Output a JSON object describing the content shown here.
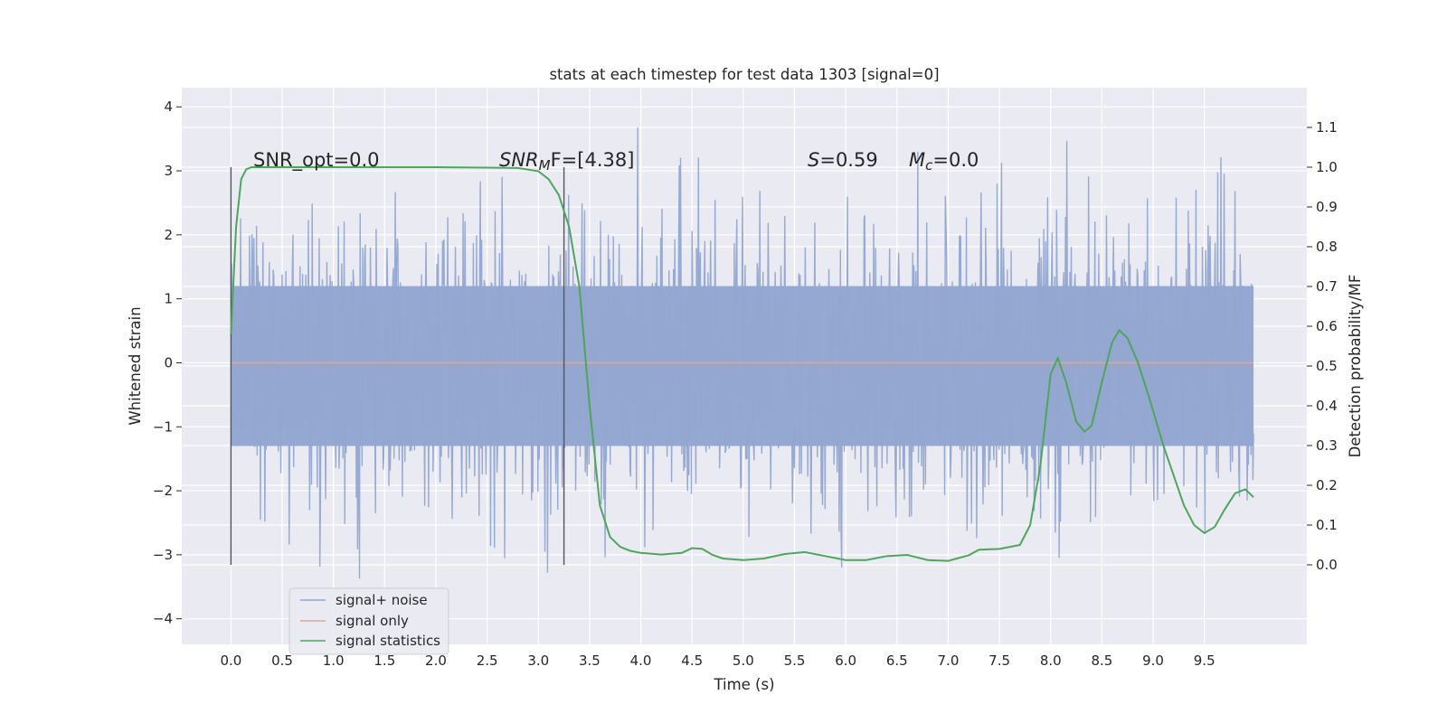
{
  "chart_data": {
    "type": "line",
    "title": "stats at each timestep for test data 1303 [signal=0]",
    "xlabel": "Time (s)",
    "ylabel": "Whitened strain",
    "ylabel_right": "Detection probability/MF",
    "xlim": [
      -0.48,
      10.5
    ],
    "ylim": [
      -4.4,
      4.3
    ],
    "ylim_right": [
      -0.2,
      1.2
    ],
    "x_ticks": [
      "0.0",
      "0.5",
      "1.0",
      "1.5",
      "2.0",
      "2.5",
      "3.0",
      "3.5",
      "4.0",
      "4.5",
      "5.0",
      "5.5",
      "6.0",
      "6.5",
      "7.0",
      "7.5",
      "8.0",
      "8.5",
      "9.0",
      "9.5"
    ],
    "y_ticks": [
      "4",
      "3",
      "2",
      "1",
      "0",
      "−1",
      "−2",
      "−3",
      "−4"
    ],
    "y_right_ticks": [
      "1.1",
      "1.0",
      "0.9",
      "0.8",
      "0.7",
      "0.6",
      "0.5",
      "0.4",
      "0.3",
      "0.2",
      "0.1",
      "0.0"
    ],
    "grid": true,
    "legend_position": "lower-left",
    "annotations": {
      "snr_opt": "SNR_opt=0.0",
      "snr_mf_italic": "SNR",
      "snr_mf_sub": "M",
      "snr_mf_rest": "F=[4.38]",
      "s_italic": "S",
      "s_rest": "=0.59",
      "mc_italic": "M",
      "mc_sub": "c",
      "mc_rest": "=0.0"
    },
    "vertical_markers": [
      0.0,
      3.25
    ],
    "series": [
      {
        "name": "signal+ noise",
        "color": "#92a6d1",
        "axis": "left",
        "x_range": [
          0.0,
          9.98
        ],
        "envelope": {
          "core": [
            -1.3,
            1.2
          ],
          "typical_extent": [
            -2.3,
            2.4
          ],
          "max": 3.9,
          "min": -3.95
        }
      },
      {
        "name": "signal only",
        "color": "#e5a58b",
        "axis": "left",
        "x": [
          0.0,
          9.98
        ],
        "y": [
          0.0,
          0.0
        ]
      },
      {
        "name": "signal statistics",
        "color": "#4ea65d",
        "axis": "right",
        "x": [
          0.0,
          0.05,
          0.1,
          0.15,
          0.2,
          0.3,
          0.5,
          1.0,
          1.5,
          2.0,
          2.5,
          2.8,
          3.0,
          3.1,
          3.2,
          3.3,
          3.4,
          3.5,
          3.6,
          3.7,
          3.8,
          3.9,
          4.0,
          4.2,
          4.4,
          4.5,
          4.6,
          4.7,
          4.8,
          5.0,
          5.2,
          5.4,
          5.6,
          5.8,
          6.0,
          6.2,
          6.4,
          6.6,
          6.8,
          7.0,
          7.2,
          7.3,
          7.5,
          7.7,
          7.8,
          7.9,
          8.0,
          8.07,
          8.15,
          8.25,
          8.33,
          8.4,
          8.5,
          8.6,
          8.67,
          8.75,
          8.85,
          8.95,
          9.1,
          9.3,
          9.4,
          9.5,
          9.6,
          9.7,
          9.8,
          9.9,
          9.98
        ],
        "y": [
          0.58,
          0.85,
          0.97,
          0.995,
          1.0,
          1.0,
          1.0,
          1.0,
          1.0,
          1.0,
          0.999,
          0.998,
          0.99,
          0.97,
          0.93,
          0.85,
          0.7,
          0.4,
          0.15,
          0.07,
          0.045,
          0.035,
          0.03,
          0.026,
          0.03,
          0.042,
          0.04,
          0.025,
          0.016,
          0.012,
          0.016,
          0.027,
          0.032,
          0.022,
          0.012,
          0.012,
          0.022,
          0.025,
          0.012,
          0.01,
          0.024,
          0.038,
          0.04,
          0.05,
          0.1,
          0.25,
          0.48,
          0.52,
          0.46,
          0.36,
          0.335,
          0.35,
          0.46,
          0.56,
          0.59,
          0.57,
          0.51,
          0.43,
          0.3,
          0.15,
          0.1,
          0.08,
          0.095,
          0.14,
          0.18,
          0.19,
          0.17
        ]
      }
    ]
  }
}
